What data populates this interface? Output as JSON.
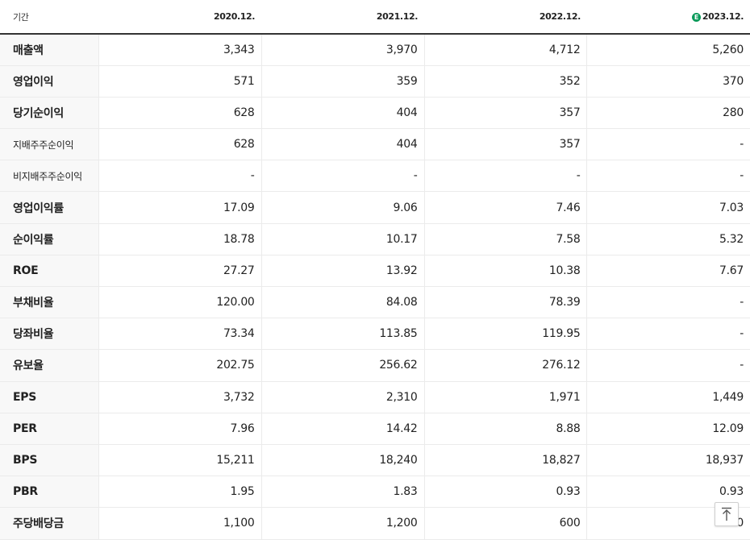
{
  "header": {
    "period_label": "기간",
    "years": [
      "2020.12.",
      "2021.12.",
      "2022.12.",
      "2023.12."
    ],
    "estimate_badge": "E"
  },
  "rows": [
    {
      "label": "매출액",
      "values": [
        "3,343",
        "3,970",
        "4,712",
        "5,260"
      ]
    },
    {
      "label": "영업이익",
      "values": [
        "571",
        "359",
        "352",
        "370"
      ]
    },
    {
      "label": "당기순이익",
      "values": [
        "628",
        "404",
        "357",
        "280"
      ]
    },
    {
      "label": "지배주주순이익",
      "values": [
        "628",
        "404",
        "357",
        "-"
      ]
    },
    {
      "label": "비지배주주순이익",
      "values": [
        "-",
        "-",
        "-",
        "-"
      ]
    },
    {
      "label": "영업이익률",
      "values": [
        "17.09",
        "9.06",
        "7.46",
        "7.03"
      ]
    },
    {
      "label": "순이익률",
      "values": [
        "18.78",
        "10.17",
        "7.58",
        "5.32"
      ]
    },
    {
      "label": "ROE",
      "values": [
        "27.27",
        "13.92",
        "10.38",
        "7.67"
      ]
    },
    {
      "label": "부채비율",
      "values": [
        "120.00",
        "84.08",
        "78.39",
        "-"
      ]
    },
    {
      "label": "당좌비율",
      "values": [
        "73.34",
        "113.85",
        "119.95",
        "-"
      ]
    },
    {
      "label": "유보율",
      "values": [
        "202.75",
        "256.62",
        "276.12",
        "-"
      ]
    },
    {
      "label": "EPS",
      "values": [
        "3,732",
        "2,310",
        "1,971",
        "1,449"
      ]
    },
    {
      "label": "PER",
      "values": [
        "7.96",
        "14.42",
        "8.88",
        "12.09"
      ]
    },
    {
      "label": "BPS",
      "values": [
        "15,211",
        "18,240",
        "18,827",
        "18,937"
      ]
    },
    {
      "label": "PBR",
      "values": [
        "1.95",
        "1.83",
        "0.93",
        "0.93"
      ]
    },
    {
      "label": "주당배당금",
      "values": [
        "1,100",
        "1,200",
        "600",
        "700"
      ]
    }
  ],
  "colors": {
    "estimate_badge": "#0a9a5a",
    "label_bg": "#f8f8f8"
  }
}
